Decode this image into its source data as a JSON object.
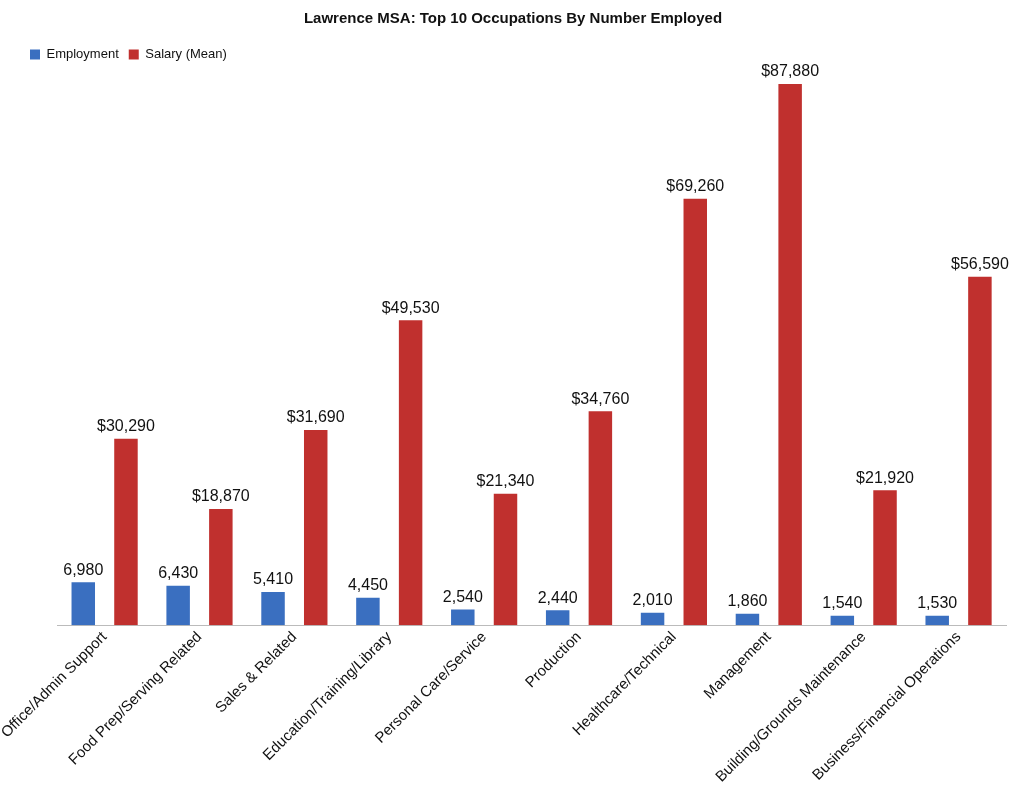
{
  "chart_data": {
    "type": "bar",
    "title": "Lawrence MSA: Top 10 Occupations By Number Employed",
    "categories": [
      "Office/Admin Support",
      "Food Prep/Serving Related",
      "Sales & Related",
      "Education/Training/Library",
      "Personal Care/Service",
      "Production",
      "Healthcare/Technical",
      "Management",
      "Building/Grounds Maintenance",
      "Business/Financial Operations"
    ],
    "series": [
      {
        "name": "Employment",
        "color": "#3a6fc0",
        "values": [
          6980,
          6430,
          5410,
          4450,
          2540,
          2440,
          2010,
          1860,
          1540,
          1530
        ],
        "value_labels": [
          "6,980",
          "6,430",
          "5,410",
          "4,450",
          "2,540",
          "2,440",
          "2,010",
          "1,860",
          "1,540",
          "1,530"
        ]
      },
      {
        "name": "Salary (Mean)",
        "color": "#c0302e",
        "values": [
          30290,
          18870,
          31690,
          49530,
          21340,
          34760,
          69260,
          87880,
          21920,
          56590
        ],
        "value_labels": [
          "$30,290",
          "$18,870",
          "$31,690",
          "$49,530",
          "$21,340",
          "$34,760",
          "$69,260",
          "$87,880",
          "$21,920",
          "$56,590"
        ]
      }
    ],
    "grid": false,
    "legend": "top left",
    "tick_labels": "x"
  }
}
